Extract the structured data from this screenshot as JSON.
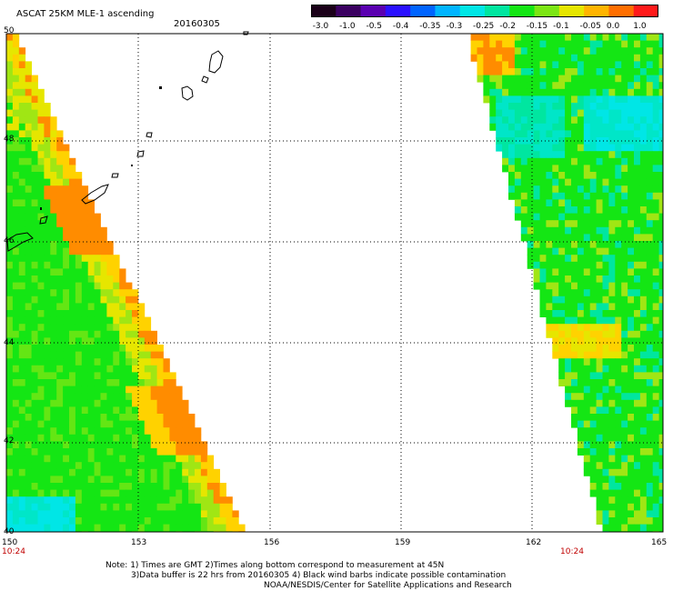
{
  "header": {
    "title": "ASCAT 25KM MLE-1 ascending",
    "date": "20160305"
  },
  "colorbar": {
    "tick_labels": [
      "-3.0",
      "-1.0",
      "-0.5",
      "-0.4",
      "-0.35",
      "-0.3",
      "-0.25",
      "-0.2",
      "-0.15",
      "-0.1",
      "-0.05",
      "0.0",
      "1.0"
    ],
    "colors": [
      "#1a0018",
      "#3a0060",
      "#5a00b0",
      "#2a10ff",
      "#0064ff",
      "#00b4ff",
      "#00e6e6",
      "#00e6a0",
      "#14e614",
      "#7ce614",
      "#e6e600",
      "#ffb400",
      "#ff6e00",
      "#ff1a1a"
    ]
  },
  "map": {
    "lat_labels": [
      "50",
      "48",
      "46",
      "44",
      "42",
      "40"
    ],
    "lon_labels": [
      "150",
      "153",
      "156",
      "159",
      "162",
      "165"
    ],
    "time_labels": [
      "10:24",
      "10:24"
    ]
  },
  "footer": {
    "note_line1": "Note: 1) Times are GMT 2)Times along bottom correspond to measurement at 45N",
    "note_line2": "3)Data buffer is 22 hrs from 20160305 4) Black wind barbs indicate possible contamination",
    "credit": "NOAA/NESDIS/Center for Satellite Applications and Research"
  }
}
